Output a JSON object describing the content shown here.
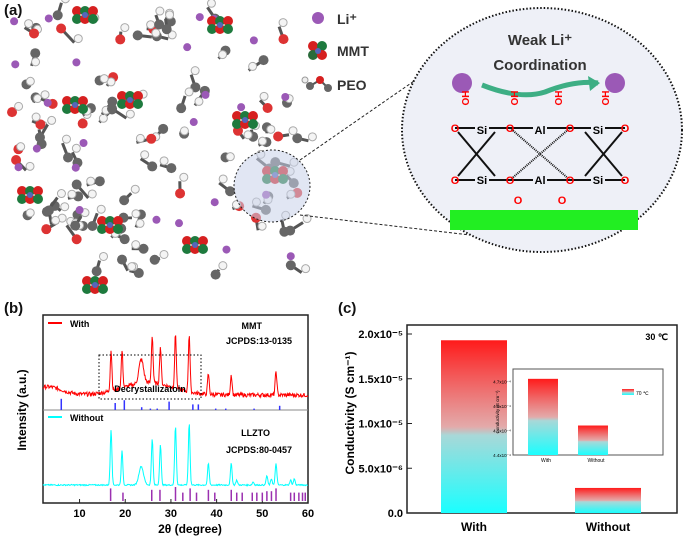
{
  "panel_a": {
    "label": "(a)",
    "legend": [
      {
        "name": "li-ion",
        "text": "Li⁺",
        "color": "#9b59b6"
      },
      {
        "name": "mmt",
        "text": "MMT"
      },
      {
        "name": "peo",
        "text": "PEO"
      }
    ],
    "zoom_title_1": "Weak Li⁺",
    "zoom_title_2": "Coordination",
    "atoms": {
      "si": "Si",
      "al": "Al",
      "o": "O",
      "oh": "OH"
    }
  },
  "chart_data": [
    {
      "type": "line",
      "panel_label": "(b)",
      "xlabel": "2θ (degree)",
      "ylabel": "Intensity (a.u.)",
      "xlim": [
        2,
        60
      ],
      "xticks": [
        10,
        20,
        30,
        40,
        50,
        60
      ],
      "annotation": "Decrystallizatoin",
      "series": [
        {
          "name": "With",
          "color": "#ff0000",
          "ref_name": "MMT",
          "ref_card": "JCPDS:13-0135",
          "peaks": [
            [
              16.9,
              0.6
            ],
            [
              19.3,
              0.55
            ],
            [
              23.5,
              0.35
            ],
            [
              25.9,
              0.7
            ],
            [
              27.7,
              0.55
            ],
            [
              31,
              0.8
            ],
            [
              34,
              0.85
            ],
            [
              38.2,
              0.3
            ],
            [
              43.2,
              0.3
            ],
            [
              53,
              0.35
            ]
          ],
          "ref_color": "#3333ff",
          "ref_lines": [
            [
              6,
              0.8
            ],
            [
              17.8,
              0.5
            ],
            [
              19.8,
              0.7
            ],
            [
              23.6,
              0.2
            ],
            [
              25.5,
              0.1
            ],
            [
              27,
              0.1
            ],
            [
              29.6,
              0.6
            ],
            [
              34.8,
              0.4
            ],
            [
              36,
              0.4
            ],
            [
              39.8,
              0.1
            ],
            [
              42,
              0.1
            ],
            [
              48.2,
              0.1
            ],
            [
              53.8,
              0.3
            ]
          ]
        },
        {
          "name": "Without",
          "color": "#00ffff",
          "ref_name": "LLZTO",
          "ref_card": "JCPDS:80-0457",
          "peaks": [
            [
              16.9,
              0.9
            ],
            [
              19.3,
              0.55
            ],
            [
              23.5,
              0.3
            ],
            [
              25.9,
              0.75
            ],
            [
              27.7,
              0.65
            ],
            [
              31,
              0.95
            ],
            [
              34,
              1.0
            ],
            [
              38.2,
              0.35
            ],
            [
              43.2,
              0.35
            ],
            [
              44.4,
              0.08
            ],
            [
              48,
              0.05
            ],
            [
              51,
              0.15
            ],
            [
              52,
              0.1
            ],
            [
              53,
              0.35
            ],
            [
              56.2,
              0.08
            ],
            [
              57,
              0.1
            ]
          ],
          "ref_color": "#9b30b0",
          "ref_lines": [
            [
              16.8,
              0.9
            ],
            [
              19.5,
              0.6
            ],
            [
              25.8,
              0.8
            ],
            [
              27.6,
              0.8
            ],
            [
              31,
              1
            ],
            [
              32.6,
              0.6
            ],
            [
              34.2,
              0.9
            ],
            [
              35.6,
              0.6
            ],
            [
              38.2,
              0.8
            ],
            [
              39.6,
              0.6
            ],
            [
              43.2,
              0.8
            ],
            [
              44.4,
              0.6
            ],
            [
              45.6,
              0.6
            ],
            [
              47.8,
              0.6
            ],
            [
              48.8,
              0.6
            ],
            [
              50,
              0.6
            ],
            [
              51,
              0.7
            ],
            [
              52,
              0.7
            ],
            [
              53,
              0.9
            ],
            [
              56.2,
              0.6
            ],
            [
              57,
              0.6
            ],
            [
              58,
              0.6
            ],
            [
              58.8,
              0.6
            ],
            [
              59.4,
              0.6
            ]
          ]
        }
      ]
    },
    {
      "type": "bar",
      "panel_label": "(c)",
      "ylabel": "Conductivity (S cm⁻¹)",
      "categories": [
        "With",
        "Without"
      ],
      "values": [
        1.93e-05,
        2.8e-06
      ],
      "ylim": [
        0,
        2e-05
      ],
      "yticks": [
        "0.0",
        "5.0x10⁻⁶",
        "1.0x10⁻⁵",
        "1.5x10⁻⁵",
        "2.0x10⁻⁵"
      ],
      "annotation": "30 ℃",
      "gradient": [
        "#ff1a1a",
        "#1affff"
      ]
    },
    {
      "type": "bar",
      "ylabel": "Conductivity (S cm⁻¹)",
      "categories": [
        "With",
        "Without"
      ],
      "values": [
        4.71,
        4.52
      ],
      "ylim": [
        4.4,
        4.75
      ],
      "yticks": [
        "4.4x10⁻⁴",
        "4.5x10⁻⁴",
        "4.6x10⁻⁴",
        "4.7x10⁻⁴"
      ],
      "legend": "70 ℃",
      "legend_position": "top-right"
    }
  ]
}
